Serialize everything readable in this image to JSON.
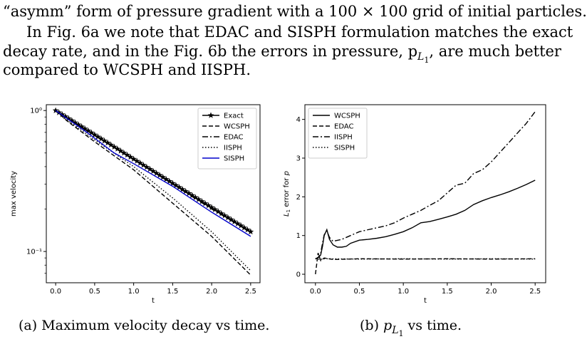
{
  "text": {
    "line1": "“asymm” form of pressure gradient with a 100 × 100 grid of initial particles.",
    "line2": "In Fig. 6a we note that EDAC and SISPH formulation matches the exact",
    "line3": "decay rate, and in the Fig. 6b the errors in pressure, p",
    "line3_sub": "L",
    "line3_subsub": "1",
    "line3_end": ", are much better",
    "line4": "compared to WCSPH and IISPH."
  },
  "captions": {
    "a": "(a) Maximum velocity decay vs time.",
    "b_pre": "(b) ",
    "b_sym": "p",
    "b_sub": "L",
    "b_subsub": "1",
    "b_post": " vs time."
  },
  "chart_data": [
    {
      "type": "line",
      "panel": "a",
      "title": "",
      "xlabel": "t",
      "ylabel": "max velocity",
      "yscale": "log",
      "xlim": [
        -0.12,
        2.62
      ],
      "ylim": [
        0.06,
        1.1
      ],
      "xticks": [
        "0.0",
        "0.5",
        "1.0",
        "1.5",
        "2.0",
        "2.5"
      ],
      "xtick_values": [
        0,
        0.5,
        1.0,
        1.5,
        2.0,
        2.5
      ],
      "yticks": [
        "10⁰",
        "10⁻¹"
      ],
      "ytick_values": [
        1,
        0.1
      ],
      "legend_position": "top-right",
      "grid": false,
      "series": [
        {
          "name": "Exact",
          "style": "solid-star",
          "color": "#000000",
          "x": [
            0,
            2.5
          ],
          "y": [
            1.0,
            0.138
          ]
        },
        {
          "name": "WCSPH",
          "style": "dashed",
          "color": "#000000",
          "x": [
            0,
            0.15,
            0.5,
            1.0,
            1.5,
            2.0,
            2.5
          ],
          "y": [
            1.0,
            0.84,
            0.6,
            0.38,
            0.22,
            0.128,
            0.068
          ]
        },
        {
          "name": "EDAC",
          "style": "dashdot",
          "color": "#000000",
          "x": [
            0,
            0.5,
            1.0,
            1.5,
            2.0,
            2.5
          ],
          "y": [
            1.0,
            0.67,
            0.45,
            0.3,
            0.2,
            0.137
          ]
        },
        {
          "name": "IISPH",
          "style": "dotted",
          "color": "#000000",
          "x": [
            0,
            0.15,
            0.5,
            1.0,
            1.5,
            2.0,
            2.5
          ],
          "y": [
            1.0,
            0.85,
            0.62,
            0.4,
            0.24,
            0.138,
            0.073
          ]
        },
        {
          "name": "SISPH",
          "style": "solid",
          "color": "#0000cc",
          "x": [
            0,
            0.4,
            0.75,
            1.0,
            1.5,
            2.0,
            2.5
          ],
          "y": [
            1.0,
            0.7,
            0.5,
            0.42,
            0.29,
            0.19,
            0.128
          ]
        }
      ]
    },
    {
      "type": "line",
      "panel": "b",
      "title": "",
      "xlabel": "t",
      "ylabel_pre": "L",
      "ylabel_sub": "1",
      "ylabel_post": " error for ",
      "ylabel_sym": "p",
      "xlim": [
        -0.12,
        2.62
      ],
      "ylim": [
        -0.22,
        4.38
      ],
      "xticks": [
        "0.0",
        "0.5",
        "1.0",
        "1.5",
        "2.0",
        "2.5"
      ],
      "xtick_values": [
        0,
        0.5,
        1.0,
        1.5,
        2.0,
        2.5
      ],
      "yticks": [
        "0",
        "1",
        "2",
        "3",
        "4"
      ],
      "ytick_values": [
        0,
        1,
        2,
        3,
        4
      ],
      "legend_position": "top-left",
      "grid": false,
      "series": [
        {
          "name": "WCSPH",
          "style": "solid",
          "color": "#000000",
          "x": [
            0,
            0.03,
            0.06,
            0.08,
            0.1,
            0.13,
            0.16,
            0.2,
            0.25,
            0.3,
            0.35,
            0.4,
            0.5,
            0.6,
            0.7,
            0.8,
            0.9,
            1.0,
            1.1,
            1.2,
            1.3,
            1.4,
            1.5,
            1.6,
            1.7,
            1.8,
            1.9,
            2.0,
            2.1,
            2.2,
            2.3,
            2.4,
            2.5
          ],
          "y": [
            0.4,
            0.42,
            0.5,
            0.72,
            1.0,
            1.15,
            0.9,
            0.76,
            0.7,
            0.7,
            0.72,
            0.8,
            0.88,
            0.9,
            0.93,
            0.97,
            1.03,
            1.1,
            1.2,
            1.33,
            1.36,
            1.42,
            1.48,
            1.55,
            1.65,
            1.8,
            1.9,
            1.98,
            2.05,
            2.13,
            2.22,
            2.32,
            2.43
          ]
        },
        {
          "name": "EDAC",
          "style": "dashed",
          "color": "#000000",
          "x": [
            0,
            0.03,
            0.06,
            0.1,
            0.2,
            0.5,
            1.0,
            1.5,
            2.0,
            2.5
          ],
          "y": [
            0.0,
            0.55,
            0.35,
            0.42,
            0.38,
            0.4,
            0.39,
            0.4,
            0.39,
            0.4
          ]
        },
        {
          "name": "IISPH",
          "style": "dashdot",
          "color": "#000000",
          "x": [
            0,
            0.03,
            0.06,
            0.08,
            0.1,
            0.13,
            0.16,
            0.2,
            0.3,
            0.4,
            0.5,
            0.6,
            0.7,
            0.8,
            0.9,
            1.0,
            1.1,
            1.2,
            1.3,
            1.4,
            1.5,
            1.6,
            1.7,
            1.8,
            1.9,
            2.0,
            2.1,
            2.2,
            2.3,
            2.4,
            2.5
          ],
          "y": [
            0.4,
            0.43,
            0.55,
            0.8,
            1.02,
            1.12,
            0.95,
            0.85,
            0.9,
            1.0,
            1.1,
            1.15,
            1.2,
            1.25,
            1.33,
            1.45,
            1.55,
            1.65,
            1.78,
            1.9,
            2.1,
            2.3,
            2.35,
            2.6,
            2.7,
            2.9,
            3.15,
            3.4,
            3.65,
            3.9,
            4.2
          ]
        },
        {
          "name": "SISPH",
          "style": "dotted",
          "color": "#000000",
          "x": [
            0,
            0.05,
            0.1,
            0.5,
            1.0,
            1.5,
            2.0,
            2.5
          ],
          "y": [
            0.4,
            0.38,
            0.4,
            0.39,
            0.4,
            0.39,
            0.4,
            0.39
          ]
        }
      ]
    }
  ]
}
